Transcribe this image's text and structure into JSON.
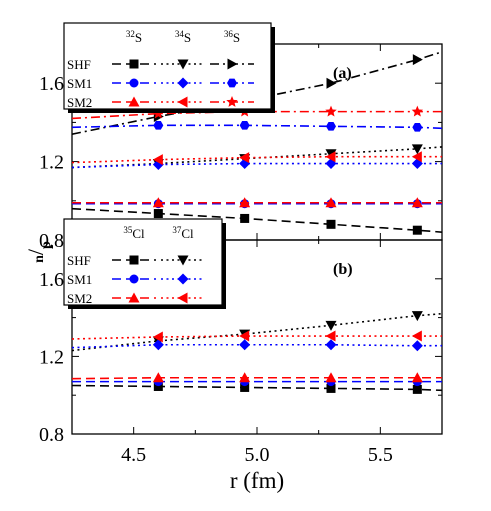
{
  "chart_data": [
    {
      "panel": "(a)",
      "type": "line",
      "xlabel": "r (fm)",
      "ylabel_main": "n",
      "ylabel_sub": "p",
      "xlim": [
        4.25,
        5.75
      ],
      "ylim": [
        0.8,
        1.8
      ],
      "xticks": [
        4.5,
        5.0,
        5.5
      ],
      "xtick_labels": [
        "4.5",
        "5.0",
        "5.5"
      ],
      "yticks": [
        0.8,
        1.2,
        1.6
      ],
      "ytick_labels": [
        "0.8",
        "1.2",
        "1.6"
      ],
      "legend": {
        "placement": "top-left",
        "columns": [
          {
            "label": "32S",
            "mass": "32",
            "symbol": "S"
          },
          {
            "label": "34S",
            "mass": "34",
            "symbol": "S"
          },
          {
            "label": "36S",
            "mass": "36",
            "symbol": "S"
          }
        ],
        "rows": [
          "SHF",
          "SM1",
          "SM2"
        ]
      },
      "x": [
        4.25,
        4.6,
        4.95,
        5.3,
        5.65,
        5.75
      ],
      "marker_x": [
        4.6,
        4.95,
        5.3,
        5.65
      ],
      "series": [
        {
          "name": "SHF 32S",
          "model": "SHF",
          "nucleus": "32S",
          "color": "#000000",
          "dash": "dash",
          "marker": "square",
          "values": [
            0.96,
            0.935,
            0.91,
            0.88,
            0.85,
            0.84
          ]
        },
        {
          "name": "SHF 34S",
          "model": "SHF",
          "nucleus": "34S",
          "color": "#000000",
          "dash": "dot",
          "marker": "triangle-down",
          "values": [
            1.17,
            1.19,
            1.215,
            1.24,
            1.265,
            1.275
          ]
        },
        {
          "name": "SHF 36S",
          "model": "SHF",
          "nucleus": "36S",
          "color": "#000000",
          "dash": "dashdot",
          "marker": "triangle-right",
          "values": [
            1.34,
            1.43,
            1.51,
            1.6,
            1.72,
            1.76
          ]
        },
        {
          "name": "SM1 32S",
          "model": "SM1",
          "nucleus": "32S",
          "color": "#0000ff",
          "dash": "dash",
          "marker": "circle",
          "values": [
            0.985,
            0.985,
            0.985,
            0.985,
            0.985,
            0.985
          ]
        },
        {
          "name": "SM1 34S",
          "model": "SM1",
          "nucleus": "34S",
          "color": "#0000ff",
          "dash": "dot",
          "marker": "diamond",
          "values": [
            1.17,
            1.185,
            1.19,
            1.19,
            1.19,
            1.19
          ]
        },
        {
          "name": "SM1 36S",
          "model": "SM1",
          "nucleus": "36S",
          "color": "#0000ff",
          "dash": "dashdot",
          "marker": "hexagon",
          "values": [
            1.375,
            1.385,
            1.385,
            1.38,
            1.375,
            1.37
          ]
        },
        {
          "name": "SM2 32S",
          "model": "SM2",
          "nucleus": "32S",
          "color": "#ff0000",
          "dash": "dash",
          "marker": "triangle-up",
          "values": [
            0.99,
            0.99,
            0.99,
            0.99,
            0.99,
            0.99
          ]
        },
        {
          "name": "SM2 34S",
          "model": "SM2",
          "nucleus": "34S",
          "color": "#ff0000",
          "dash": "dot",
          "marker": "triangle-left",
          "values": [
            1.195,
            1.21,
            1.22,
            1.225,
            1.225,
            1.225
          ]
        },
        {
          "name": "SM2 36S",
          "model": "SM2",
          "nucleus": "36S",
          "color": "#ff0000",
          "dash": "dashdot",
          "marker": "star",
          "values": [
            1.42,
            1.445,
            1.455,
            1.455,
            1.455,
            1.455
          ]
        }
      ]
    },
    {
      "panel": "(b)",
      "type": "line",
      "xlabel": "r (fm)",
      "xlim": [
        4.25,
        5.75
      ],
      "ylim": [
        0.8,
        1.8
      ],
      "xticks": [
        4.5,
        5.0,
        5.5
      ],
      "xtick_labels": [
        "4.5",
        "5.0",
        "5.5"
      ],
      "yticks": [
        0.8,
        1.2,
        1.6
      ],
      "ytick_labels": [
        "0.8",
        "1.2",
        "1.6"
      ],
      "legend": {
        "placement": "top-left",
        "columns": [
          {
            "label": "35Cl",
            "mass": "35",
            "symbol": "Cl"
          },
          {
            "label": "37Cl",
            "mass": "37",
            "symbol": "Cl"
          }
        ],
        "rows": [
          "SHF",
          "SM1",
          "SM2"
        ]
      },
      "x": [
        4.25,
        4.6,
        4.95,
        5.3,
        5.65,
        5.75
      ],
      "marker_x": [
        4.6,
        4.95,
        5.3,
        5.65
      ],
      "series": [
        {
          "name": "SHF 35Cl",
          "model": "SHF",
          "nucleus": "35Cl",
          "color": "#000000",
          "dash": "dash",
          "marker": "square",
          "values": [
            1.05,
            1.045,
            1.04,
            1.035,
            1.03,
            1.025
          ]
        },
        {
          "name": "SHF 37Cl",
          "model": "SHF",
          "nucleus": "37Cl",
          "color": "#000000",
          "dash": "dot",
          "marker": "triangle-down",
          "values": [
            1.23,
            1.28,
            1.315,
            1.36,
            1.41,
            1.42
          ]
        },
        {
          "name": "SM1 35Cl",
          "model": "SM1",
          "nucleus": "35Cl",
          "color": "#0000ff",
          "dash": "dash",
          "marker": "circle",
          "values": [
            1.07,
            1.07,
            1.07,
            1.07,
            1.07,
            1.07
          ]
        },
        {
          "name": "SM1 37Cl",
          "model": "SM1",
          "nucleus": "37Cl",
          "color": "#0000ff",
          "dash": "dot",
          "marker": "diamond",
          "values": [
            1.245,
            1.26,
            1.26,
            1.26,
            1.255,
            1.255
          ]
        },
        {
          "name": "SM2 35Cl",
          "model": "SM2",
          "nucleus": "35Cl",
          "color": "#ff0000",
          "dash": "dash",
          "marker": "triangle-up",
          "values": [
            1.085,
            1.09,
            1.09,
            1.09,
            1.09,
            1.09
          ]
        },
        {
          "name": "SM2 37Cl",
          "model": "SM2",
          "nucleus": "37Cl",
          "color": "#ff0000",
          "dash": "dot",
          "marker": "triangle-left",
          "values": [
            1.29,
            1.3,
            1.305,
            1.305,
            1.305,
            1.305
          ]
        }
      ]
    }
  ]
}
